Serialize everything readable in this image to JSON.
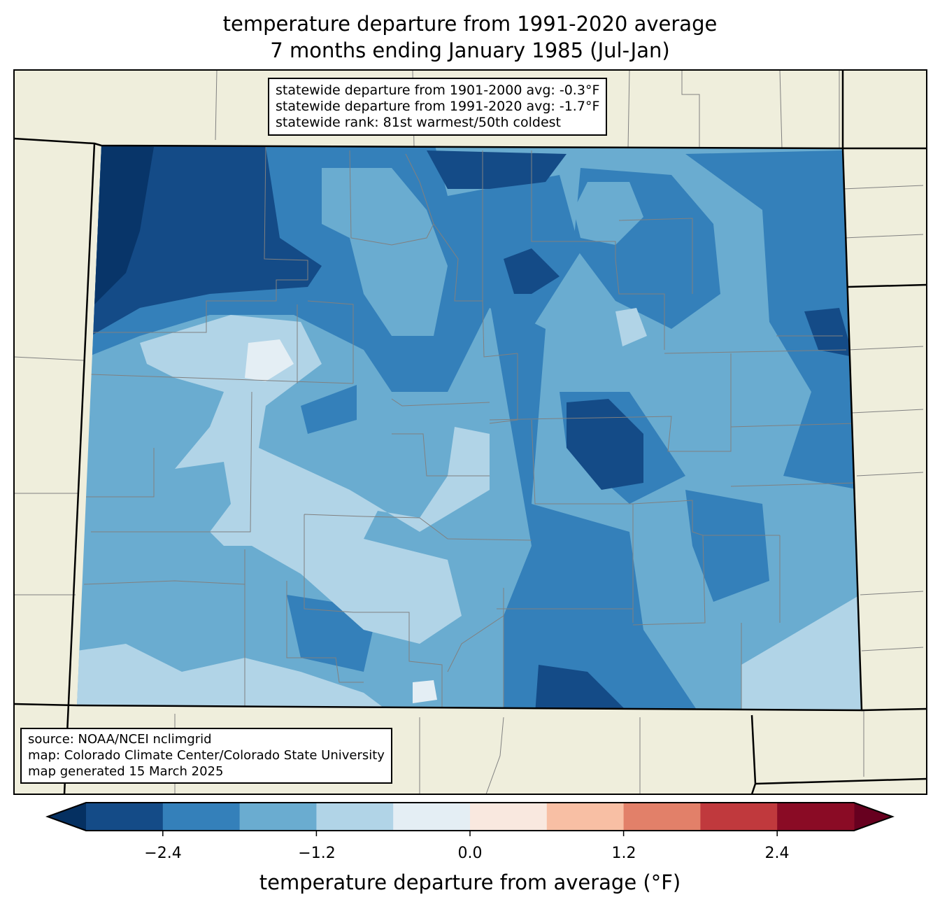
{
  "title": {
    "line1": "temperature departure from 1991-2020 average",
    "line2": "7 months ending January 1985 (Jul-Jan)"
  },
  "stats_box": {
    "lines": [
      "statewide departure from 1901-2000 avg: -0.3°F",
      "statewide departure from 1991-2020 avg: -1.7°F",
      "statewide rank: 81st warmest/50th coldest"
    ]
  },
  "source_box": {
    "lines": [
      "source: NOAA/NCEI nclimgrid",
      "map: Colorado Climate Center/Colorado State University",
      "map generated 15 March 2025"
    ]
  },
  "colorbar": {
    "label": "temperature departure from average (°F)",
    "ticks": [
      "−2.4",
      "−1.2",
      "0.0",
      "1.2",
      "2.4"
    ],
    "tick_values": [
      -2.4,
      -1.2,
      0.0,
      1.2,
      2.4
    ],
    "bounds": [
      -3.0,
      3.0
    ],
    "step": 0.6,
    "under_color": "#053061",
    "over_color": "#67001f",
    "colors": [
      "#144b87",
      "#3480ba",
      "#6aacd0",
      "#b1d4e7",
      "#e4eef4",
      "#f9e8df",
      "#f8bfa4",
      "#e28069",
      "#c0393d",
      "#8a0b25"
    ]
  },
  "colors": {
    "land": "#efeedc",
    "county_line": "#808080",
    "border": "#000000"
  }
}
